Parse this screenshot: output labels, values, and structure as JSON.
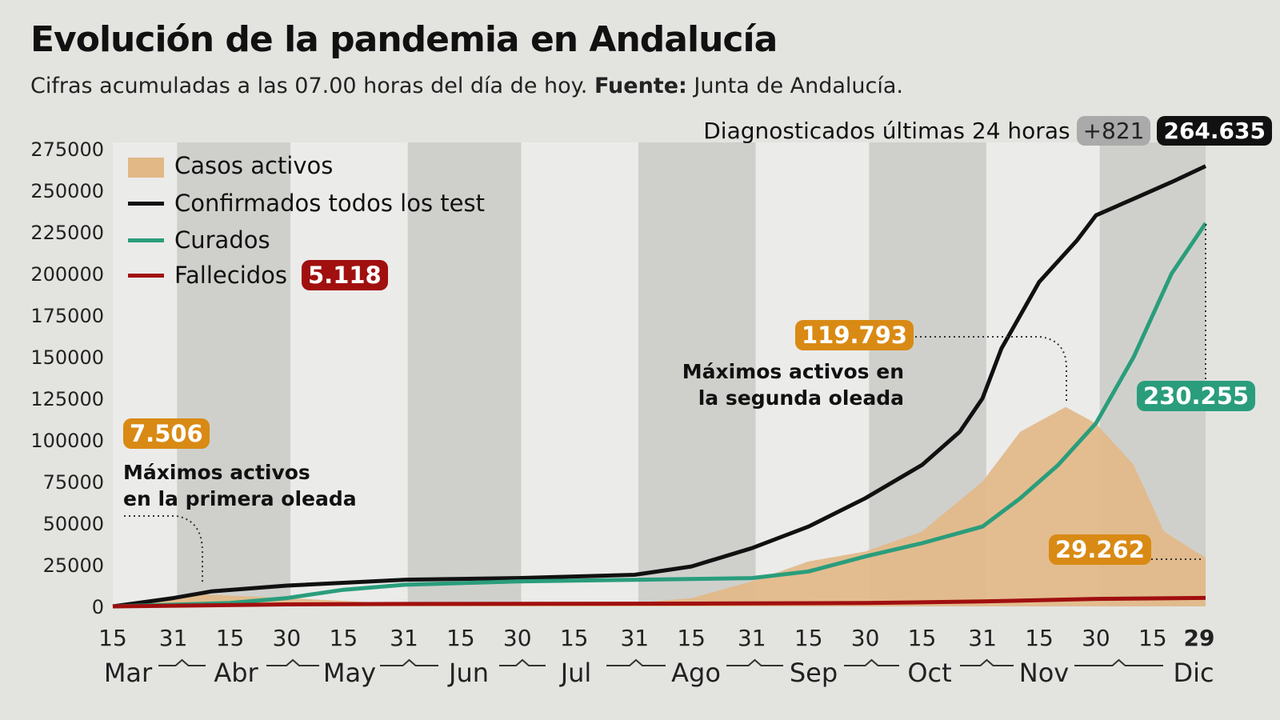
{
  "title": "Evolución de la pandemia en Andalucía",
  "subtitle": {
    "text": "Cifras acumuladas a las 07.00 horas del día de hoy.",
    "source_label": "Fuente:",
    "source": "Junta de Andalucía."
  },
  "header_stat": {
    "label": "Diagnosticados últimas 24 horas",
    "delta": "+821",
    "total": "264.635"
  },
  "colors": {
    "active": "#e2b886",
    "confirmed": "#111111",
    "recovered": "#2a9d7c",
    "deaths": "#a10f0f",
    "badge_orange": "#d98a14",
    "band_dark": "#cfd0cc",
    "band_light": "#ebebea"
  },
  "annotations": {
    "first_wave": {
      "value": "7.506",
      "text1": "Máximos activos",
      "text2": "en la primera oleada"
    },
    "second_wave": {
      "value": "119.793",
      "text1": "Máximos activos en",
      "text2": "la segunda oleada"
    },
    "current_active": "29.262",
    "recovered_total": "230.255",
    "deaths_total": "5.118"
  },
  "chart_data": {
    "type": "line",
    "title": "Evolución de la pandemia en Andalucía",
    "ylim": [
      0,
      275000
    ],
    "y_ticks": [
      "0",
      "25000",
      "50000",
      "75000",
      "100000",
      "125000",
      "150000",
      "175000",
      "200000",
      "225000",
      "250000",
      "275000"
    ],
    "x_ticks": [
      [
        "2020-03-15",
        "15"
      ],
      [
        "2020-03-31",
        "31"
      ],
      [
        "2020-04-15",
        "15"
      ],
      [
        "2020-04-30",
        "30"
      ],
      [
        "2020-05-15",
        "15"
      ],
      [
        "2020-05-31",
        "31"
      ],
      [
        "2020-06-15",
        "15"
      ],
      [
        "2020-06-30",
        "30"
      ],
      [
        "2020-07-15",
        "15"
      ],
      [
        "2020-07-31",
        "31"
      ],
      [
        "2020-08-15",
        "15"
      ],
      [
        "2020-08-31",
        "31"
      ],
      [
        "2020-09-15",
        "15"
      ],
      [
        "2020-09-30",
        "30"
      ],
      [
        "2020-10-15",
        "15"
      ],
      [
        "2020-10-31",
        "31"
      ],
      [
        "2020-11-15",
        "15"
      ],
      [
        "2020-11-30",
        "30"
      ],
      [
        "2020-12-15",
        "15"
      ],
      [
        "2020-12-29",
        "29"
      ]
    ],
    "months": [
      "Mar",
      "Abr",
      "May",
      "Jun",
      "Jul",
      "Ago",
      "Sep",
      "Oct",
      "Nov",
      "Dic"
    ],
    "grid": false,
    "legend": "top-left",
    "series": [
      {
        "name": "Casos activos",
        "kind": "area",
        "points": [
          [
            "2020-03-15",
            0
          ],
          [
            "2020-04-05",
            7506
          ],
          [
            "2020-04-30",
            5000
          ],
          [
            "2020-05-31",
            1500
          ],
          [
            "2020-06-30",
            1000
          ],
          [
            "2020-07-31",
            2000
          ],
          [
            "2020-08-15",
            5000
          ],
          [
            "2020-08-31",
            15000
          ],
          [
            "2020-09-15",
            27000
          ],
          [
            "2020-09-30",
            33000
          ],
          [
            "2020-10-15",
            45000
          ],
          [
            "2020-10-31",
            75000
          ],
          [
            "2020-11-10",
            105000
          ],
          [
            "2020-11-22",
            119793
          ],
          [
            "2020-11-30",
            110000
          ],
          [
            "2020-12-10",
            85000
          ],
          [
            "2020-12-18",
            45000
          ],
          [
            "2020-12-29",
            29262
          ]
        ]
      },
      {
        "name": "Confirmados todos los test",
        "kind": "line",
        "points": [
          [
            "2020-03-15",
            0
          ],
          [
            "2020-03-31",
            5000
          ],
          [
            "2020-04-10",
            9000
          ],
          [
            "2020-04-30",
            12500
          ],
          [
            "2020-05-31",
            16000
          ],
          [
            "2020-06-30",
            17000
          ],
          [
            "2020-07-31",
            19000
          ],
          [
            "2020-08-15",
            24000
          ],
          [
            "2020-08-31",
            35000
          ],
          [
            "2020-09-15",
            48000
          ],
          [
            "2020-09-30",
            65000
          ],
          [
            "2020-10-15",
            85000
          ],
          [
            "2020-10-25",
            105000
          ],
          [
            "2020-10-31",
            125000
          ],
          [
            "2020-11-05",
            155000
          ],
          [
            "2020-11-15",
            195000
          ],
          [
            "2020-11-25",
            220000
          ],
          [
            "2020-11-30",
            235000
          ],
          [
            "2020-12-10",
            245000
          ],
          [
            "2020-12-20",
            255000
          ],
          [
            "2020-12-29",
            264635
          ]
        ]
      },
      {
        "name": "Curados",
        "kind": "line",
        "points": [
          [
            "2020-03-15",
            0
          ],
          [
            "2020-04-15",
            2000
          ],
          [
            "2020-04-30",
            5000
          ],
          [
            "2020-05-15",
            10000
          ],
          [
            "2020-05-31",
            13000
          ],
          [
            "2020-06-30",
            15000
          ],
          [
            "2020-07-31",
            16000
          ],
          [
            "2020-08-31",
            17000
          ],
          [
            "2020-09-15",
            21000
          ],
          [
            "2020-09-30",
            30000
          ],
          [
            "2020-10-15",
            38000
          ],
          [
            "2020-10-31",
            48000
          ],
          [
            "2020-11-10",
            65000
          ],
          [
            "2020-11-20",
            85000
          ],
          [
            "2020-11-30",
            110000
          ],
          [
            "2020-12-10",
            150000
          ],
          [
            "2020-12-20",
            200000
          ],
          [
            "2020-12-29",
            230255
          ]
        ]
      },
      {
        "name": "Fallecidos",
        "kind": "line",
        "points": [
          [
            "2020-03-15",
            0
          ],
          [
            "2020-04-30",
            1200
          ],
          [
            "2020-05-31",
            1500
          ],
          [
            "2020-08-15",
            1700
          ],
          [
            "2020-09-30",
            2000
          ],
          [
            "2020-10-31",
            3000
          ],
          [
            "2020-11-30",
            4500
          ],
          [
            "2020-12-29",
            5118
          ]
        ]
      }
    ]
  }
}
